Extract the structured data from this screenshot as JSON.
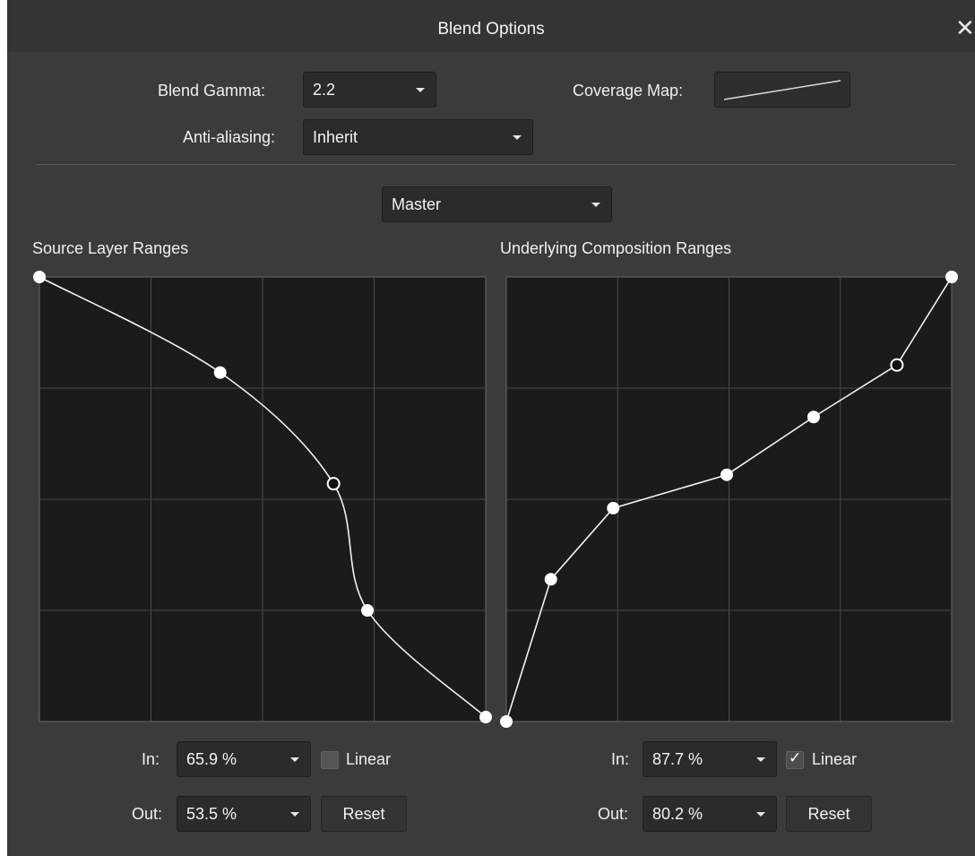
{
  "window": {
    "title": "Blend Options",
    "close_glyph": "✕"
  },
  "top": {
    "blend_gamma_label": "Blend Gamma:",
    "blend_gamma_value": "2.2",
    "coverage_map_label": "Coverage Map:",
    "anti_aliasing_label": "Anti-aliasing:",
    "anti_aliasing_value": "Inherit"
  },
  "channel": {
    "value": "Master"
  },
  "source": {
    "title": "Source Layer Ranges",
    "in_label": "In:",
    "in_value": "65.9 %",
    "out_label": "Out:",
    "out_value": "53.5 %",
    "linear_label": "Linear",
    "linear_checked": false,
    "reset_label": "Reset",
    "points": [
      [
        0,
        1.0
      ],
      [
        0.405,
        0.785
      ],
      [
        0.659,
        0.535
      ],
      [
        0.735,
        0.25
      ],
      [
        1.0,
        0.01
      ]
    ],
    "selected_index": 2
  },
  "underlying": {
    "title": "Underlying Composition Ranges",
    "in_label": "In:",
    "in_value": "87.7 %",
    "out_label": "Out:",
    "out_value": "80.2 %",
    "linear_label": "Linear",
    "linear_checked": true,
    "reset_label": "Reset",
    "points": [
      [
        0,
        0
      ],
      [
        0.1,
        0.32
      ],
      [
        0.24,
        0.48
      ],
      [
        0.495,
        0.555
      ],
      [
        0.69,
        0.685
      ],
      [
        0.877,
        0.802
      ],
      [
        1.0,
        1.0
      ]
    ],
    "selected_index": 5
  },
  "colors": {
    "dialog_bg": "#3b3b3b",
    "graph_bg": "#1b1b1b",
    "grid": "#4a4a4a",
    "curve": "#f2f2f2"
  }
}
